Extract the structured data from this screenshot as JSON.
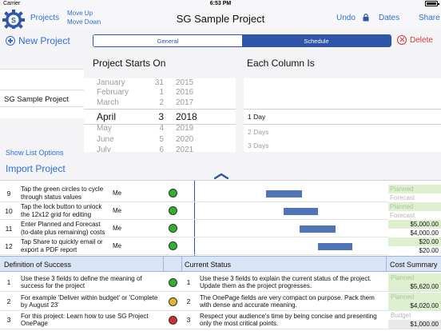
{
  "status_bar": {
    "carrier": "Carrier",
    "time": "6:53 PM"
  },
  "nav": {
    "projects": "Projects",
    "move_up": "Move Up",
    "move_down": "Move Down",
    "title": "SG Sample Project",
    "undo": "Undo",
    "dates": "Dates",
    "share": "Share"
  },
  "panel": {
    "new_project": "New Project",
    "tabs": [
      "General",
      "Schedule"
    ],
    "selected_tab": "Schedule",
    "delete": "Delete",
    "project_item": "SG Sample Project",
    "show_list_options": "Show List Options",
    "import_project": "Import Project",
    "starts_on_label": "Project Starts On",
    "each_column_label": "Each Column Is",
    "date_picker": [
      {
        "m": "January",
        "d": "31",
        "y": "2015"
      },
      {
        "m": "February",
        "d": "1",
        "y": "2016"
      },
      {
        "m": "March",
        "d": "2",
        "y": "2017"
      },
      {
        "m": "April",
        "d": "3",
        "y": "2018",
        "selected": true
      },
      {
        "m": "May",
        "d": "4",
        "y": "2019"
      },
      {
        "m": "June",
        "d": "5",
        "y": "2020"
      },
      {
        "m": "July",
        "d": "6",
        "y": "2021"
      }
    ],
    "column_picker": [
      {
        "label": "1 Day",
        "selected": true
      },
      {
        "label": "2 Days"
      },
      {
        "label": "3 Days"
      }
    ]
  },
  "tasks": [
    {
      "num": "9",
      "task": "Tap the green circles to cycle through status values",
      "who": "Me",
      "status": "green",
      "cost": {
        "planned": "Planned",
        "pval": "",
        "forecast": "Forecast",
        "fval": ""
      }
    },
    {
      "num": "10",
      "task": "Tap the lock button to unlock the 12x12 grid for editing",
      "who": "Me",
      "status": "green",
      "cost": {
        "planned": "Planned",
        "pval": "",
        "forecast": "Forecast",
        "fval": ""
      }
    },
    {
      "num": "11",
      "task": "Enter Planned and Forecast (to-date plus remaining) costs",
      "who": "Me",
      "status": "green",
      "cost": {
        "planned": "",
        "pval": "$5,000.00",
        "forecast": "",
        "fval": "$4,000.00"
      }
    },
    {
      "num": "12",
      "task": "Tap Share to quickly email or export a PDF report",
      "who": "Me",
      "status": "green",
      "cost": {
        "planned": "",
        "pval": "$20.00",
        "forecast": "",
        "fval": "$20.00"
      }
    }
  ],
  "sections": {
    "definition": "Definition of Success",
    "current_status": "Current Status",
    "cost_summary": "Cost Summary"
  },
  "summary_rows": [
    {
      "num": "1",
      "text": "Use these 3 fields to define the meaning of success for the project",
      "status": "green",
      "cnum": "1",
      "ctext": "Use these 3 fields to explain the current status of the project. Update them as the project progresses.",
      "cost": {
        "planned": "Planned",
        "pval": "$5,620.00",
        "forecast": "",
        "fval": ""
      }
    },
    {
      "num": "2",
      "text": "For example 'Deliver within budget' or 'Complete by August 23'",
      "status": "yellow",
      "cnum": "2",
      "ctext": "The OnePage fields are very compact on purpose.  Pack them with dense and accurate meaning.",
      "cost": {
        "planned": "Planned",
        "pval": "$4,020.00",
        "forecast": "",
        "fval": ""
      }
    },
    {
      "num": "3",
      "text": "For this project: Learn how to use SG Project OnePage",
      "status": "red",
      "cnum": "3",
      "ctext": "Respect your audience's time by being concise and presenting only the most critical points.",
      "cost": {
        "planned": "",
        "pval": "",
        "forecast": "Budget",
        "fval": "$1,000.00"
      }
    }
  ],
  "chart_data": {
    "type": "gantt",
    "rows": [
      "9",
      "10",
      "11",
      "12"
    ],
    "bars": [
      {
        "row": "9",
        "start": 90,
        "end": 135
      },
      {
        "row": "10",
        "start": 112,
        "end": 155
      },
      {
        "row": "11",
        "start": 132,
        "end": 177
      },
      {
        "row": "12",
        "start": 155,
        "end": 198
      }
    ],
    "x_range": [
      0,
      240
    ]
  }
}
